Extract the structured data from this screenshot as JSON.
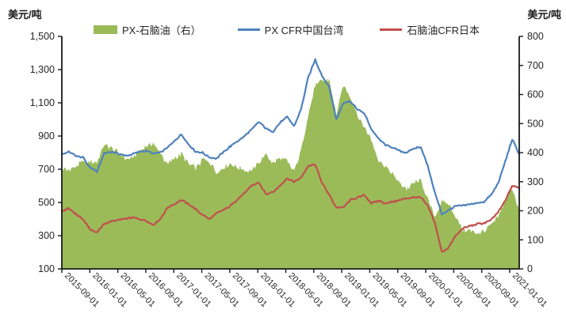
{
  "left_axis_caption": "美元/吨",
  "right_axis_caption": "美元/吨",
  "legend": {
    "area_label": "PX-石脑油（右）",
    "px_label": "PX CFR中国台湾",
    "naphtha_label": "石脑油CFR日本"
  },
  "colors": {
    "area": "#9bbb59",
    "px_line": "#4f81bd",
    "naphtha_line": "#c0504d",
    "axis": "#1a1a1a",
    "tick_text": "#262626"
  },
  "chart_data": {
    "type": "area",
    "note": "combo chart: green area (right axis) + two lines (left axis); monthly estimated values",
    "x": {
      "start": "2015-09-01",
      "end": "2021-02-01",
      "interval": "monthly",
      "tick_labels": [
        "2015-09-01",
        "2016-01-01",
        "2016-05-01",
        "2016-09-01",
        "2017-01-01",
        "2017-05-01",
        "2017-09-01",
        "2018-01-01",
        "2018-05-01",
        "2018-09-01",
        "2019-01-01",
        "2019-05-01",
        "2019-09-01",
        "2020-01-01",
        "2020-05-01",
        "2020-09-01",
        "2021-01-01"
      ]
    },
    "left_axis": {
      "title": "美元/吨",
      "min": 100,
      "max": 1500,
      "tick_values": [
        1500,
        1300,
        1100,
        900,
        700,
        500,
        300,
        100
      ],
      "tick_labels": [
        "1,500",
        "1,300",
        "1,100",
        "900",
        "700",
        "500",
        "300",
        "100"
      ]
    },
    "right_axis": {
      "title": "美元/吨",
      "min": 0,
      "max": 800,
      "tick_values": [
        800,
        700,
        600,
        500,
        400,
        300,
        200,
        100,
        0
      ],
      "tick_labels": [
        "800",
        "700",
        "600",
        "500",
        "400",
        "300",
        "200",
        "100",
        "0"
      ]
    },
    "series": [
      {
        "name": "PX-石脑油（右）",
        "type": "area",
        "axis": "right",
        "color": "#9bbb59",
        "values": [
          345,
          340,
          350,
          370,
          370,
          365,
          425,
          420,
          400,
          380,
          380,
          405,
          422,
          430,
          400,
          360,
          380,
          395,
          360,
          345,
          375,
          370,
          330,
          350,
          360,
          350,
          340,
          340,
          365,
          395,
          365,
          380,
          370,
          335,
          410,
          530,
          630,
          645,
          650,
          530,
          630,
          595,
          530,
          490,
          445,
          375,
          350,
          325,
          295,
          275,
          295,
          305,
          240,
          180,
          230,
          225,
          180,
          135,
          130,
          125,
          130,
          150,
          175,
          235,
          280,
          200
        ]
      },
      {
        "name": "PX CFR中国台湾",
        "type": "line",
        "axis": "left",
        "color": "#4f81bd",
        "values": [
          790,
          805,
          780,
          770,
          710,
          685,
          795,
          805,
          795,
          780,
          790,
          805,
          812,
          795,
          800,
          830,
          870,
          910,
          850,
          805,
          800,
          770,
          765,
          805,
          840,
          870,
          900,
          940,
          985,
          945,
          925,
          980,
          1015,
          960,
          1060,
          1250,
          1360,
          1260,
          1195,
          1000,
          1100,
          1110,
          1060,
          1035,
          940,
          885,
          845,
          830,
          810,
          800,
          825,
          835,
          720,
          560,
          430,
          455,
          480,
          480,
          490,
          495,
          505,
          545,
          615,
          745,
          880,
          790
        ]
      },
      {
        "name": "石脑油CFR日本",
        "type": "line",
        "axis": "left",
        "color": "#c0504d",
        "values": [
          445,
          465,
          430,
          400,
          340,
          320,
          370,
          385,
          395,
          400,
          410,
          400,
          390,
          365,
          400,
          470,
          490,
          515,
          490,
          460,
          425,
          400,
          435,
          455,
          480,
          520,
          560,
          600,
          620,
          550,
          560,
          600,
          645,
          625,
          650,
          720,
          730,
          615,
          545,
          470,
          470,
          515,
          530,
          545,
          495,
          510,
          495,
          505,
          515,
          525,
          530,
          530,
          480,
          380,
          200,
          230,
          300,
          345,
          360,
          370,
          375,
          395,
          440,
          510,
          600,
          590
        ]
      }
    ]
  }
}
